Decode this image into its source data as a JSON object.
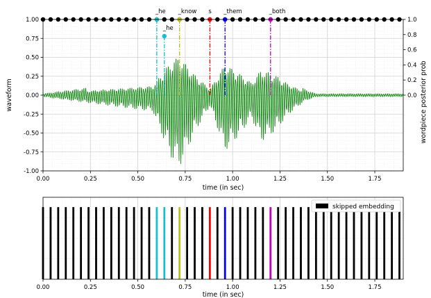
{
  "chart_data": [
    {
      "type": "line",
      "xlabel": "time (in sec)",
      "ylabel": "waveform",
      "y2label": "wordpiece posterior prob",
      "xlim": [
        0,
        1.9
      ],
      "ylim": [
        -1.0,
        1.0
      ],
      "y2lim": [
        -1.0,
        1.0
      ],
      "x_ticks": [
        "0.00",
        "0.25",
        "0.50",
        "0.75",
        "1.00",
        "1.25",
        "1.50",
        "1.75"
      ],
      "y_ticks": [
        "-1.00",
        "-0.75",
        "-0.50",
        "-0.25",
        "0.00",
        "0.25",
        "0.50",
        "0.75",
        "1.00"
      ],
      "y2_ticks": [
        "0.0",
        "0.2",
        "0.4",
        "0.6",
        "0.8",
        "1.0"
      ],
      "grid": true,
      "waveform_segments": [
        {
          "start": 0.0,
          "end": 0.58,
          "amp": 0.02
        },
        {
          "start": 0.58,
          "end": 0.63,
          "amp": 0.22
        },
        {
          "start": 0.63,
          "end": 0.68,
          "amp": 0.55
        },
        {
          "start": 0.68,
          "end": 0.72,
          "amp": 0.85
        },
        {
          "start": 0.72,
          "end": 0.8,
          "amp": 0.95
        },
        {
          "start": 0.8,
          "end": 0.88,
          "amp": 0.5
        },
        {
          "start": 0.88,
          "end": 0.92,
          "amp": 0.15
        },
        {
          "start": 0.92,
          "end": 0.96,
          "amp": 0.45
        },
        {
          "start": 0.96,
          "end": 1.03,
          "amp": 0.75
        },
        {
          "start": 1.03,
          "end": 1.1,
          "amp": 0.55
        },
        {
          "start": 1.1,
          "end": 1.15,
          "amp": 0.3
        },
        {
          "start": 1.15,
          "end": 1.22,
          "amp": 0.62
        },
        {
          "start": 1.22,
          "end": 1.3,
          "amp": 0.5
        },
        {
          "start": 1.3,
          "end": 1.38,
          "amp": 0.25
        },
        {
          "start": 1.38,
          "end": 1.44,
          "amp": 0.08
        },
        {
          "start": 1.44,
          "end": 1.9,
          "amp": 0.02
        }
      ],
      "posterior_times": [
        0.0,
        0.04,
        0.08,
        0.12,
        0.16,
        0.2,
        0.24,
        0.28,
        0.32,
        0.36,
        0.4,
        0.44,
        0.48,
        0.52,
        0.56,
        0.6,
        0.64,
        0.68,
        0.72,
        0.76,
        0.8,
        0.84,
        0.88,
        0.92,
        0.96,
        1.0,
        1.04,
        1.08,
        1.12,
        1.16,
        1.2,
        1.24,
        1.28,
        1.32,
        1.36,
        1.4,
        1.44,
        1.48,
        1.52,
        1.56,
        1.6,
        1.64,
        1.68,
        1.72,
        1.76,
        1.8,
        1.84,
        1.88
      ],
      "posterior_value": 1.0,
      "series": [
        {
          "name": "_he",
          "x": 0.6,
          "y": 1.0,
          "color": "#17becf",
          "dash": "dashdot"
        },
        {
          "name": "_he",
          "x": 0.64,
          "y": 0.78,
          "color": "#17becf",
          "dash": "dashdot"
        },
        {
          "name": "_know",
          "x": 0.72,
          "y": 1.0,
          "color": "#bcbd22",
          "dash": "dashdot"
        },
        {
          "name": "s",
          "x": 0.88,
          "y": 1.0,
          "color": "#ff0000",
          "dash": "dashdot"
        },
        {
          "name": "_them",
          "x": 0.96,
          "y": 1.0,
          "color": "#0000ff",
          "dash": "dashdot"
        },
        {
          "name": "_both",
          "x": 1.2,
          "y": 1.0,
          "color": "#bf00bf",
          "dash": "dashdot"
        }
      ],
      "waveform_color": "#008000"
    },
    {
      "type": "bar",
      "xlabel": "time (in sec)",
      "xlim": [
        0,
        1.9
      ],
      "x_ticks": [
        "0.00",
        "0.25",
        "0.50",
        "0.75",
        "1.00",
        "1.25",
        "1.50",
        "1.75"
      ],
      "legend": {
        "label": "skipped embedding",
        "placement": "top-right",
        "color": "#000000"
      },
      "skipped_times": [
        0.0,
        0.04,
        0.08,
        0.12,
        0.16,
        0.2,
        0.24,
        0.28,
        0.32,
        0.36,
        0.4,
        0.44,
        0.48,
        0.52,
        0.56,
        0.68,
        0.76,
        0.8,
        0.84,
        0.92,
        1.0,
        1.04,
        1.08,
        1.12,
        1.16,
        1.24,
        1.28,
        1.32,
        1.36,
        1.4,
        1.44,
        1.48,
        1.52,
        1.56,
        1.6,
        1.64,
        1.68,
        1.72,
        1.76,
        1.8,
        1.84,
        1.88
      ],
      "kept": [
        {
          "x": 0.6,
          "color": "#17becf"
        },
        {
          "x": 0.64,
          "color": "#17becf"
        },
        {
          "x": 0.72,
          "color": "#bcbd22"
        },
        {
          "x": 0.88,
          "color": "#ff0000"
        },
        {
          "x": 0.96,
          "color": "#0000ff"
        },
        {
          "x": 1.2,
          "color": "#bf00bf"
        }
      ],
      "bar_height": 0.88
    }
  ]
}
